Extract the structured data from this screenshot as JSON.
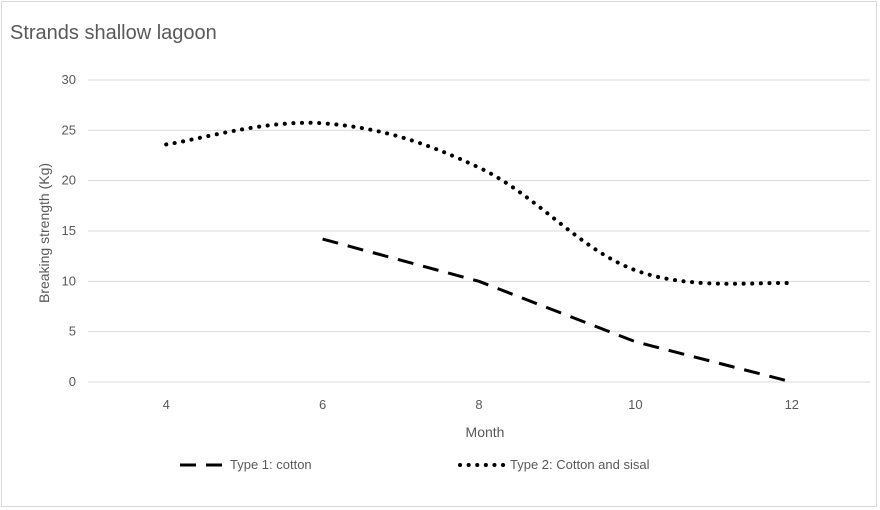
{
  "chart_data": {
    "type": "line",
    "title": "Strands shallow lagoon",
    "xlabel": "Month",
    "ylabel": "Breaking strength (Kg)",
    "categories": [
      "4",
      "6",
      "8",
      "10",
      "12"
    ],
    "ylim": [
      0,
      30
    ],
    "yticks": [
      "0",
      "5",
      "10",
      "15",
      "20",
      "25",
      "30"
    ],
    "grid": true,
    "legend_position": "bottom",
    "series": [
      {
        "name": "Type 1: cotton",
        "style": "dashed",
        "color": "#000000",
        "points": [
          [
            6,
            14.2
          ],
          [
            8,
            10
          ],
          [
            10,
            4
          ],
          [
            12,
            0
          ]
        ]
      },
      {
        "name": "Type 2: Cotton and sisal",
        "style": "dotted",
        "color": "#000000",
        "points": [
          [
            4,
            23.6
          ],
          [
            6,
            25.7
          ],
          [
            8,
            21.3
          ],
          [
            10,
            11.1
          ],
          [
            12,
            9.8
          ]
        ]
      }
    ]
  }
}
